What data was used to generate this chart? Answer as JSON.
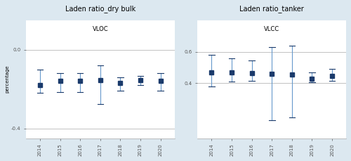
{
  "left_title": "Laden ratio_dry bulk",
  "right_title": "Laden ratio_tanker",
  "subtitle_left": "VLOC",
  "subtitle_right": "VLCC",
  "years": [
    2014,
    2015,
    2016,
    2017,
    2018,
    2019,
    2020
  ],
  "ylabel": "percentage",
  "background_color": "#dce8f0",
  "plot_bg_color": "#ffffff",
  "marker_color": "#1a3a6b",
  "line_color": "#6699cc",
  "left": {
    "means": [
      -0.18,
      -0.16,
      -0.16,
      -0.155,
      -0.17,
      -0.155,
      -0.16
    ],
    "upper": [
      -0.1,
      -0.12,
      -0.12,
      -0.08,
      -0.14,
      -0.135,
      -0.12
    ],
    "lower": [
      -0.22,
      -0.215,
      -0.215,
      -0.275,
      -0.21,
      -0.18,
      -0.21
    ],
    "ylim": [
      -0.45,
      0.15
    ],
    "yticks": [
      -0.4,
      0.0
    ]
  },
  "right": {
    "means": [
      0.47,
      0.47,
      0.465,
      0.46,
      0.455,
      0.43,
      0.445
    ],
    "upper": [
      0.58,
      0.56,
      0.545,
      0.63,
      0.64,
      0.47,
      0.49
    ],
    "lower": [
      0.38,
      0.41,
      0.415,
      0.165,
      0.18,
      0.405,
      0.415
    ],
    "ylim": [
      0.05,
      0.8
    ],
    "yticks": [
      0.4,
      0.6
    ]
  }
}
